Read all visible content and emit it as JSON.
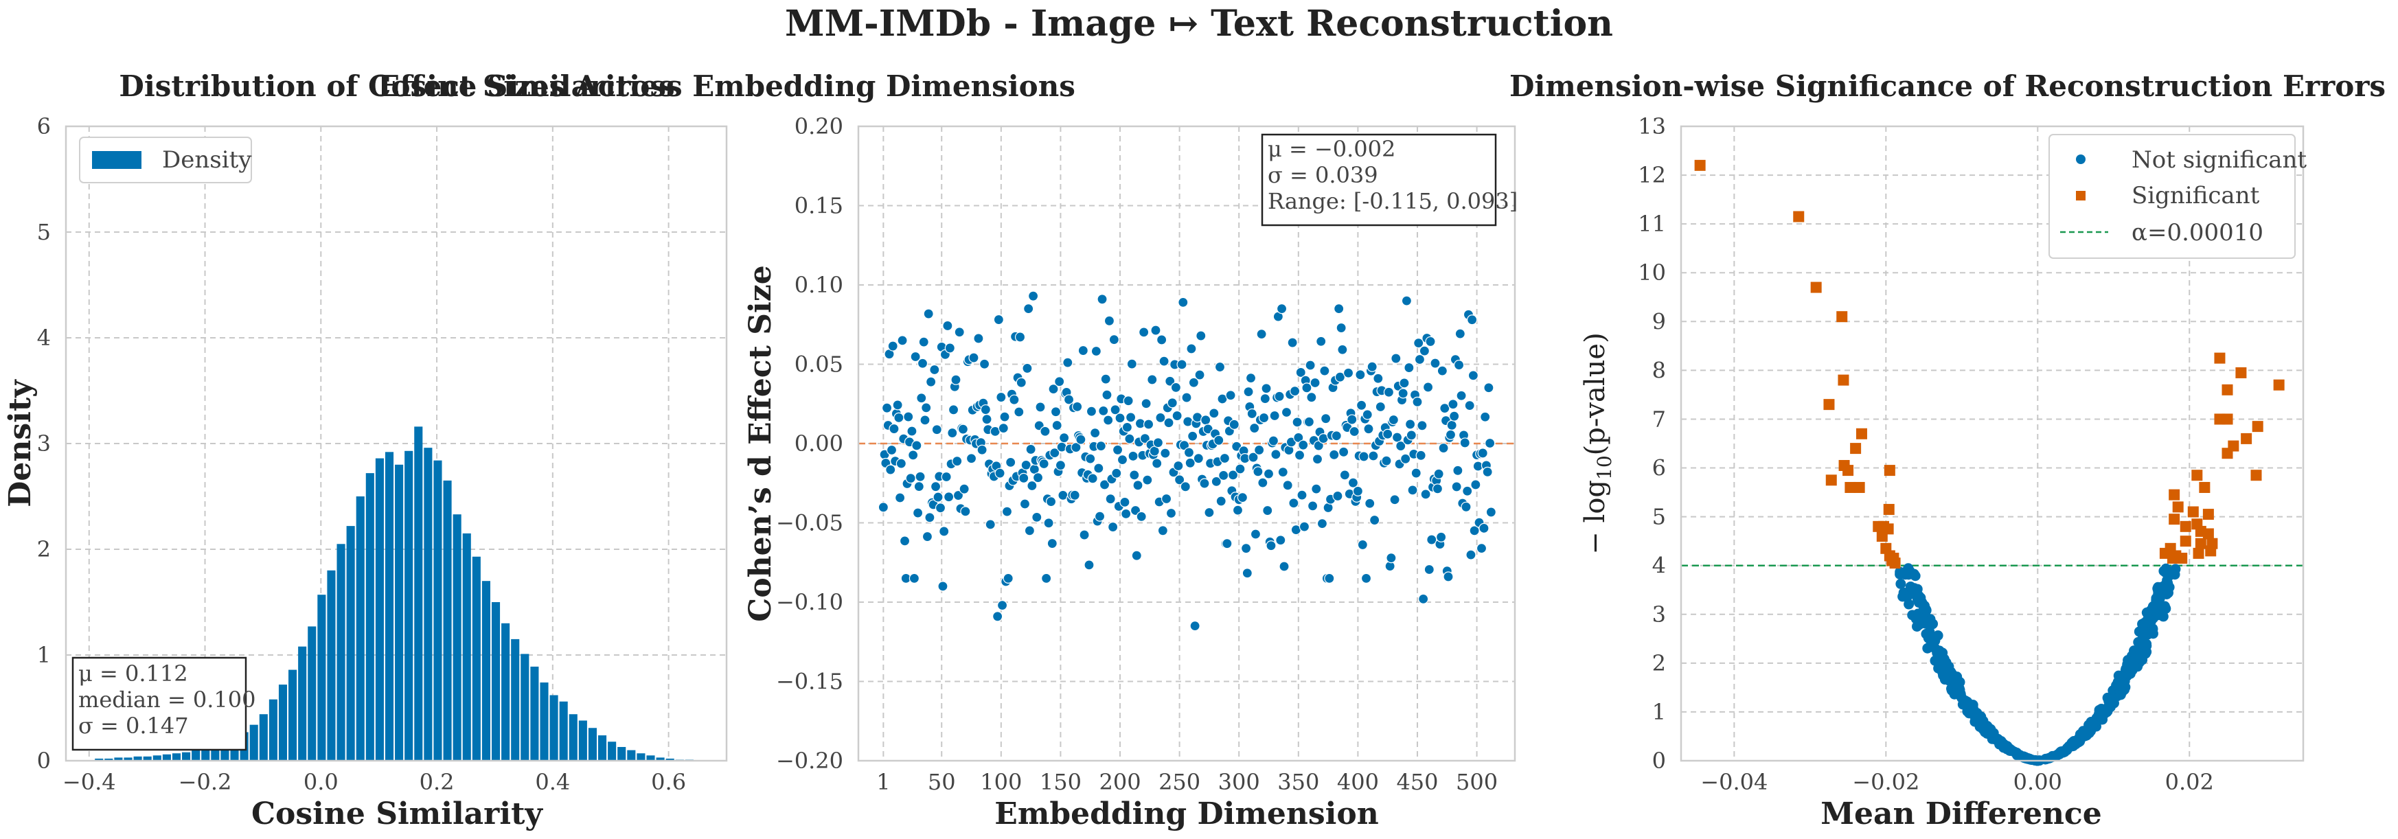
{
  "figure": {
    "title": "MM-IMDb - Image ↦ Text Reconstruction"
  },
  "colors": {
    "blue": "#0072b2",
    "orange": "#d55e00",
    "green": "#1a9850",
    "hline": "#e8874f"
  },
  "chart_data": [
    {
      "type": "bar",
      "title": "Distribution of Cosine Similarities",
      "xlabel": "Cosine Similarity",
      "ylabel": "Density",
      "xlim": [
        -0.44,
        0.7
      ],
      "ylim": [
        0,
        6
      ],
      "x_ticks": [
        "−0.4",
        "−0.2",
        "0.0",
        "0.2",
        "0.4",
        "0.6"
      ],
      "y_ticks": [
        "0",
        "1",
        "2",
        "3",
        "4",
        "5",
        "6"
      ],
      "grid": true,
      "legend": {
        "position": "top-left",
        "entries": [
          "Density"
        ]
      },
      "bin_width": 0.0167,
      "bin_start": -0.39,
      "values": [
        0.02,
        0.02,
        0.03,
        0.03,
        0.04,
        0.04,
        0.05,
        0.06,
        0.07,
        0.08,
        0.1,
        0.12,
        0.15,
        0.17,
        0.22,
        0.27,
        0.34,
        0.44,
        0.58,
        0.72,
        0.86,
        1.08,
        1.27,
        1.57,
        1.8,
        2.05,
        2.22,
        2.5,
        2.72,
        2.86,
        2.92,
        2.8,
        2.93,
        3.16,
        2.96,
        2.84,
        2.65,
        2.33,
        2.15,
        1.93,
        1.7,
        1.5,
        1.3,
        1.15,
        1.01,
        0.89,
        0.74,
        0.62,
        0.56,
        0.44,
        0.38,
        0.31,
        0.24,
        0.18,
        0.13,
        0.1,
        0.07,
        0.05,
        0.03,
        0.02,
        0.01,
        0.01,
        0.005
      ],
      "stats_box": {
        "line1": "μ = 0.112",
        "line2": "median = 0.100",
        "line3": "σ = 0.147"
      }
    },
    {
      "type": "scatter",
      "title": "Effect Sizes Across Embedding Dimensions",
      "xlabel": "Embedding Dimension",
      "ylabel": "Cohen’s d Effect Size",
      "xlim": [
        -20,
        532
      ],
      "ylim": [
        -0.2,
        0.2
      ],
      "x_ticks": [
        "1",
        "50",
        "100",
        "150",
        "200",
        "250",
        "300",
        "350",
        "400",
        "450",
        "500"
      ],
      "y_ticks": [
        "−0.20",
        "−0.15",
        "−0.10",
        "−0.05",
        "0.00",
        "0.05",
        "0.10",
        "0.15",
        "0.20"
      ],
      "grid": true,
      "hline": 0.0,
      "n_points": 512,
      "stats_box": {
        "line1": "μ = −0.002",
        "line2": "σ = 0.039",
        "line3": "Range: [-0.115, 0.093]"
      },
      "highlight_points": [
        {
          "x": 97,
          "y": -0.109
        },
        {
          "x": 101,
          "y": -0.102
        },
        {
          "x": 104,
          "y": -0.087
        },
        {
          "x": 263,
          "y": -0.115
        },
        {
          "x": 455,
          "y": -0.098
        },
        {
          "x": 127,
          "y": 0.093
        },
        {
          "x": 185,
          "y": 0.091
        },
        {
          "x": 253,
          "y": 0.089
        },
        {
          "x": 441,
          "y": 0.09
        },
        {
          "x": 51,
          "y": -0.09
        },
        {
          "x": 35,
          "y": 0.064
        },
        {
          "x": 17,
          "y": 0.065
        }
      ]
    },
    {
      "type": "scatter",
      "title": "Dimension-wise Significance of Reconstruction Errors",
      "xlabel": "Mean Difference",
      "ylabel": "−log10(p-value)",
      "ylabel_main": "− log",
      "ylabel_sub": "10",
      "ylabel_rest": "(p-value)",
      "xlim": [
        -0.047,
        0.035
      ],
      "ylim": [
        0,
        13
      ],
      "x_ticks": [
        "−0.04",
        "−0.02",
        "0.00",
        "0.02"
      ],
      "y_ticks": [
        "0",
        "1",
        "2",
        "3",
        "4",
        "5",
        "6",
        "7",
        "8",
        "9",
        "10",
        "11",
        "12",
        "13"
      ],
      "grid": true,
      "threshold": 4.0,
      "legend": {
        "position": "top-right",
        "entries": [
          "Not significant",
          "Significant",
          "α=0.00010"
        ]
      },
      "significant_points": [
        [
          -0.0445,
          12.2
        ],
        [
          -0.0315,
          11.15
        ],
        [
          -0.0292,
          9.7
        ],
        [
          -0.0258,
          9.1
        ],
        [
          -0.0256,
          7.8
        ],
        [
          -0.0275,
          7.3
        ],
        [
          -0.0232,
          6.7
        ],
        [
          -0.024,
          6.4
        ],
        [
          -0.0255,
          6.05
        ],
        [
          -0.025,
          5.95
        ],
        [
          -0.0272,
          5.75
        ],
        [
          -0.0247,
          5.6
        ],
        [
          -0.0235,
          5.6
        ],
        [
          -0.0195,
          5.95
        ],
        [
          -0.0196,
          5.15
        ],
        [
          -0.021,
          4.8
        ],
        [
          -0.0203,
          4.8
        ],
        [
          -0.0197,
          4.75
        ],
        [
          -0.0205,
          4.6
        ],
        [
          -0.02,
          4.35
        ],
        [
          -0.0195,
          4.2
        ],
        [
          -0.019,
          4.15
        ],
        [
          -0.0192,
          4.1
        ],
        [
          -0.0188,
          4.05
        ],
        [
          0.024,
          8.25
        ],
        [
          0.0268,
          7.95
        ],
        [
          0.025,
          7.6
        ],
        [
          0.0318,
          7.7
        ],
        [
          0.024,
          7.0
        ],
        [
          0.025,
          7.0
        ],
        [
          0.029,
          6.85
        ],
        [
          0.0275,
          6.6
        ],
        [
          0.0258,
          6.45
        ],
        [
          0.025,
          6.3
        ],
        [
          0.021,
          5.85
        ],
        [
          0.0288,
          5.85
        ],
        [
          0.018,
          5.45
        ],
        [
          0.022,
          5.6
        ],
        [
          0.0185,
          5.2
        ],
        [
          0.018,
          4.95
        ],
        [
          0.0205,
          5.1
        ],
        [
          0.0225,
          5.05
        ],
        [
          0.021,
          4.85
        ],
        [
          0.0195,
          4.8
        ],
        [
          0.0215,
          4.7
        ],
        [
          0.0225,
          4.65
        ],
        [
          0.023,
          4.45
        ],
        [
          0.0175,
          4.35
        ],
        [
          0.0168,
          4.25
        ],
        [
          0.0182,
          4.2
        ],
        [
          0.0195,
          4.5
        ],
        [
          0.0215,
          4.45
        ],
        [
          0.0228,
          4.3
        ],
        [
          0.0212,
          4.25
        ],
        [
          0.019,
          4.15
        ],
        [
          0.0178,
          4.15
        ]
      ]
    }
  ]
}
